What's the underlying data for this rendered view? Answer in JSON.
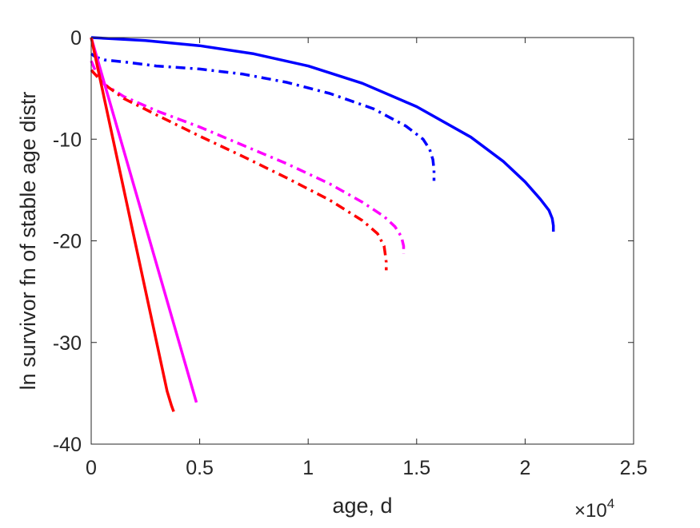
{
  "chart_data": {
    "type": "line",
    "title": "",
    "xlabel": "age, d",
    "ylabel": "ln survivor fn of stable age distr",
    "x_exponent_label": "×10",
    "x_exponent_power": "4",
    "xlim": [
      0,
      25000
    ],
    "ylim": [
      -40,
      0
    ],
    "xticks": [
      0,
      5000,
      10000,
      15000,
      20000,
      25000
    ],
    "xtick_labels": [
      "0",
      "0.5",
      "1",
      "1.5",
      "2",
      "2.5"
    ],
    "yticks": [
      0,
      -10,
      -20,
      -30,
      -40
    ],
    "ytick_labels": [
      "0",
      "-10",
      "-20",
      "-30",
      "-40"
    ],
    "grid": false,
    "series": [
      {
        "color": "#0000ff",
        "style": "solid",
        "x": [
          0,
          2500,
          5000,
          7500,
          10000,
          12500,
          15000,
          17500,
          19000,
          20000,
          20700,
          21100,
          21250,
          21300,
          21300
        ],
        "y": [
          0,
          -0.3,
          -0.8,
          -1.6,
          -2.8,
          -4.5,
          -6.8,
          -9.8,
          -12.2,
          -14.2,
          -15.9,
          -17.0,
          -17.8,
          -18.5,
          -19.1
        ]
      },
      {
        "color": "#0000ff",
        "style": "dashdot",
        "x": [
          0,
          200,
          600,
          1500,
          3000,
          5000,
          7000,
          9000,
          11000,
          13000,
          14500,
          15300,
          15600,
          15750,
          15800,
          15800
        ],
        "y": [
          -1.6,
          -1.9,
          -2.2,
          -2.4,
          -2.8,
          -3.1,
          -3.6,
          -4.4,
          -5.5,
          -7.0,
          -8.7,
          -10.0,
          -11.0,
          -12.0,
          -13.0,
          -14.1
        ]
      },
      {
        "color": "#ff00ff",
        "style": "dashdot",
        "x": [
          0,
          300,
          600,
          1500,
          3000,
          5000,
          7000,
          9000,
          11000,
          12500,
          13500,
          14000,
          14300,
          14400,
          14400
        ],
        "y": [
          -2.3,
          -3.8,
          -4.6,
          -5.8,
          -7.2,
          -8.8,
          -10.6,
          -12.4,
          -14.4,
          -16.2,
          -17.6,
          -18.6,
          -19.6,
          -20.5,
          -21.3
        ]
      },
      {
        "color": "#ff0000",
        "style": "dashdot",
        "x": [
          0,
          300,
          600,
          1500,
          3000,
          5000,
          7000,
          9000,
          11000,
          12500,
          13200,
          13500,
          13550,
          13600,
          13600
        ],
        "y": [
          -3.2,
          -3.9,
          -4.6,
          -6.0,
          -7.6,
          -9.7,
          -11.7,
          -13.8,
          -16.0,
          -18.0,
          -19.3,
          -20.5,
          -21.3,
          -22.1,
          -22.9
        ]
      },
      {
        "color": "#ff00ff",
        "style": "solid",
        "x": [
          0,
          4850
        ],
        "y": [
          0,
          -35.9
        ]
      },
      {
        "color": "#ff0000",
        "style": "solid",
        "x": [
          0,
          3500,
          3700,
          3800
        ],
        "y": [
          0,
          -34.8,
          -36.2,
          -36.8
        ]
      }
    ]
  }
}
